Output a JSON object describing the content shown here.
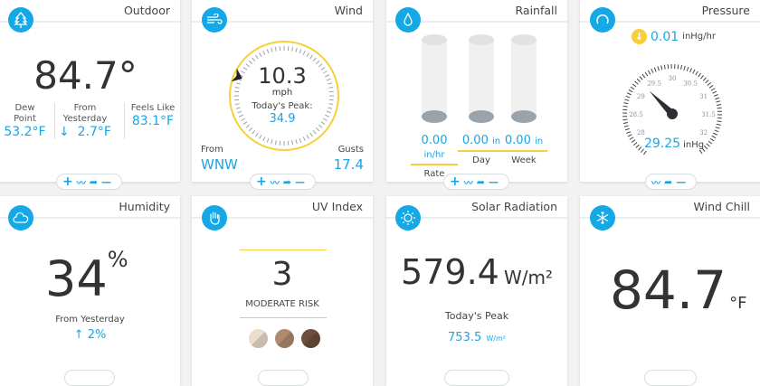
{
  "colors": {
    "accent": "#1ba4e3",
    "gold": "#f7cf3b",
    "background": "#f2f2f2"
  },
  "toolbar": {
    "add": "+",
    "chart": "〰",
    "share": "➦",
    "remove": "—"
  },
  "outdoor": {
    "title": "Outdoor",
    "icon": "tree-icon",
    "temp": "84.7°",
    "dew_label1": "Dew",
    "dew_label2": "Point",
    "dew": "53.2°F",
    "from_label1": "From",
    "from_label2": "Yesterday",
    "from_arrow": "↓",
    "from": "2.7°F",
    "feels_label": "Feels Like",
    "feels": "83.1°F"
  },
  "wind": {
    "title": "Wind",
    "icon": "wind-icon",
    "speed": "10.3",
    "unit": "mph",
    "peak_label": "Today's Peak:",
    "peak": "34.9",
    "from_label": "From",
    "from": "WNW",
    "direction_deg": 292.5,
    "gusts_label": "Gusts",
    "gusts": "17.4"
  },
  "rainfall": {
    "title": "Rainfall",
    "icon": "droplet-icon",
    "items": [
      {
        "value": "0.00",
        "unit": "in/hr",
        "label": "Rate"
      },
      {
        "value": "0.00",
        "unit": "in",
        "label": "Day"
      },
      {
        "value": "0.00",
        "unit": "in",
        "label": "Week"
      }
    ]
  },
  "pressure": {
    "title": "Pressure",
    "icon": "gauge-icon",
    "trend_arrow": "↓",
    "trend": "0.01",
    "trend_unit": "inHg/hr",
    "value": "29.25",
    "value_num": 29.25,
    "unit": "inHg",
    "scale": [
      "28",
      "28.5",
      "29",
      "29.5",
      "30",
      "30.5",
      "31",
      "31.5",
      "32"
    ]
  },
  "humidity": {
    "title": "Humidity",
    "icon": "cloud-icon",
    "value": "34",
    "unit": "%",
    "from_label": "From Yesterday",
    "from_arrow": "↑",
    "from": "2%"
  },
  "uv": {
    "title": "UV Index",
    "icon": "hand-icon",
    "value": "3",
    "risk": "MODERATE RISK",
    "skin_colors": [
      "#ecdccc",
      "#b08a70",
      "#6b4e3c"
    ]
  },
  "solar": {
    "title": "Solar Radiation",
    "icon": "sun-icon",
    "value": "579.4",
    "unit": "W/m²",
    "peak_label": "Today's Peak",
    "peak": "753.5",
    "peak_unit": "W/m²"
  },
  "windchill": {
    "title": "Wind Chill",
    "icon": "snowflake-icon",
    "value": "84.7",
    "unit": "°F"
  }
}
